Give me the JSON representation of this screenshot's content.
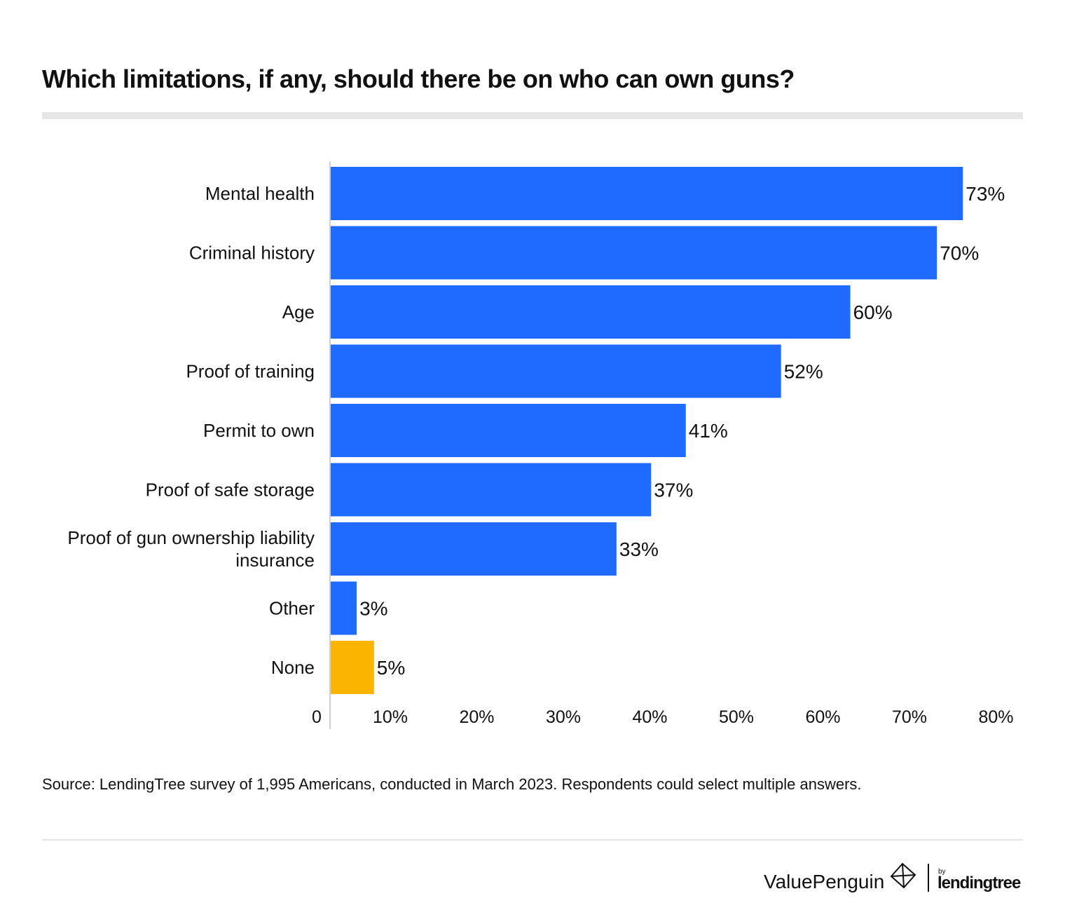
{
  "title": "Which limitations, if any, should there be on who can own guns?",
  "source": "Source: LendingTree survey of 1,995 Americans, conducted in March 2023. Respondents could select multiple answers.",
  "logos": {
    "valuepenguin": "ValuePenguin",
    "by": "by",
    "lendingtree": "lendingtree"
  },
  "colors": {
    "primary": "#1f6bff",
    "highlight": "#fbb400"
  },
  "chart_data": {
    "type": "bar",
    "orientation": "horizontal",
    "title": "Which limitations, if any, should there be on who can own guns?",
    "categories": [
      "Mental health",
      "Criminal history",
      "Age",
      "Proof of training",
      "Permit to own",
      "Proof of safe storage",
      "Proof of gun ownership liability insurance",
      "Other",
      "None"
    ],
    "category_lines": [
      [
        "Mental health"
      ],
      [
        "Criminal history"
      ],
      [
        "Age"
      ],
      [
        "Proof of training"
      ],
      [
        "Permit to own"
      ],
      [
        "Proof of safe storage"
      ],
      [
        "Proof of gun ownership liability",
        "insurance"
      ],
      [
        "Other"
      ],
      [
        "None"
      ]
    ],
    "values": [
      73,
      70,
      60,
      52,
      41,
      37,
      33,
      3,
      5
    ],
    "data_labels": [
      "73%",
      "70%",
      "60%",
      "52%",
      "41%",
      "37%",
      "33%",
      "3%",
      "5%"
    ],
    "bar_colors": [
      "#1f6bff",
      "#1f6bff",
      "#1f6bff",
      "#1f6bff",
      "#1f6bff",
      "#1f6bff",
      "#1f6bff",
      "#1f6bff",
      "#fbb400"
    ],
    "x_ticks": [
      "0",
      "10%",
      "20%",
      "30%",
      "40%",
      "50%",
      "60%",
      "70%",
      "80%"
    ],
    "xlim": [
      0,
      80
    ],
    "grid": false
  }
}
